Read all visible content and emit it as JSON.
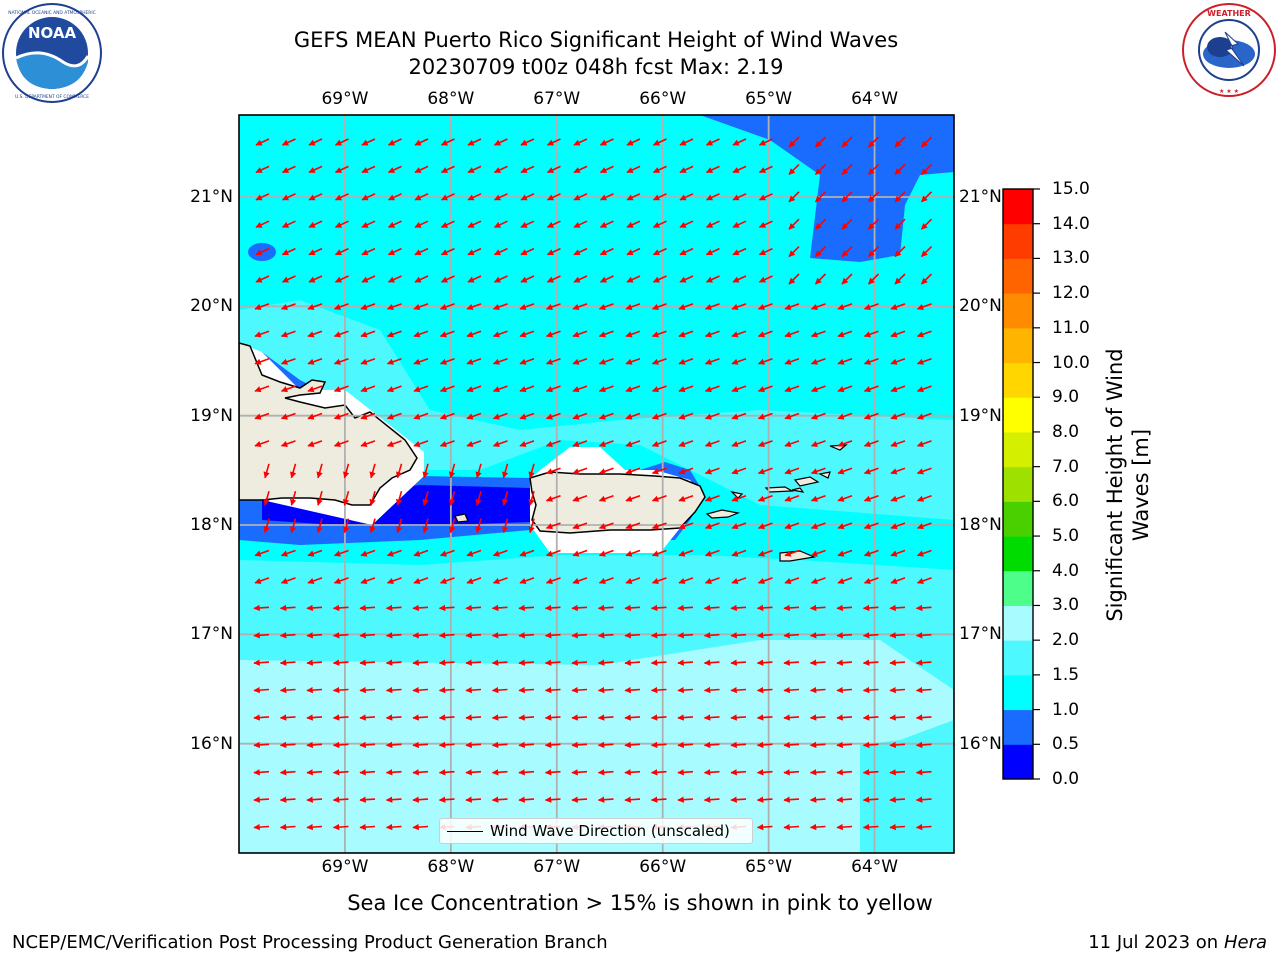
{
  "header": {
    "title_line1": "GEFS MEAN Puerto Rico Significant Height of Wind Waves",
    "title_line2": "20230709 t00z 048h fcst   Max: 2.19"
  },
  "logos": {
    "left": {
      "name": "noaa-logo",
      "text": "NOAA",
      "ring_text": "NATIONAL OCEANIC AND ATMOSPHERIC ADMINISTRATION · U.S. DEPARTMENT OF COMMERCE"
    },
    "right": {
      "name": "nws-logo",
      "ring_text": "NATIONAL WEATHER SERVICE"
    }
  },
  "map": {
    "lon_labels": [
      "69°W",
      "68°W",
      "67°W",
      "66°W",
      "65°W",
      "64°W"
    ],
    "lat_labels": [
      "21°N",
      "20°N",
      "19°N",
      "18°N",
      "17°N",
      "16°N"
    ],
    "lon_values": [
      -69,
      -68,
      -67,
      -66,
      -65,
      -64
    ],
    "lat_values": [
      21,
      20,
      19,
      18,
      17,
      16
    ],
    "extent": {
      "lon_min": -70.0,
      "lon_max": -63.25,
      "lat_min": 15.0,
      "lat_max": 21.75
    },
    "arrow_color": "#ff0000",
    "land_color": "#eeecdf",
    "grid": true,
    "legend_label": "Wind Wave Direction (unscaled)",
    "note": "Sea Ice Concentration > 15% is shown in pink to yellow"
  },
  "colorbar": {
    "label": "Significant Height of Wind Waves [m]",
    "ticks": [
      "0.0",
      "0.5",
      "1.0",
      "1.5",
      "2.0",
      "3.0",
      "4.0",
      "5.0",
      "6.0",
      "7.0",
      "8.0",
      "9.0",
      "10.0",
      "11.0",
      "12.0",
      "13.0",
      "14.0",
      "15.0"
    ],
    "colors": [
      "#0000ff",
      "#1a6cff",
      "#00ffff",
      "#4df9ff",
      "#a8fbff",
      "#4dff8a",
      "#00dc00",
      "#4ad000",
      "#9ee000",
      "#d4f000",
      "#ffff00",
      "#ffd600",
      "#ffb400",
      "#ff8c00",
      "#ff6400",
      "#ff3c00",
      "#ff0000"
    ]
  },
  "footer": {
    "left": "NCEP/EMC/Verification Post Processing Product Generation Branch",
    "right_prefix": "11 Jul 2023 on ",
    "right_system": "Hera"
  }
}
